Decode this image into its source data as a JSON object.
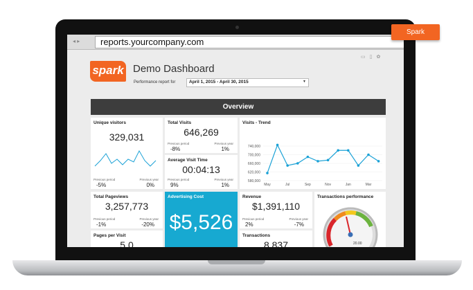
{
  "browser": {
    "url": "reports.yourcompany.com"
  },
  "badge": "Spark",
  "header": {
    "logo": "spark",
    "title": "Demo Dashboard",
    "report_label": "Performance report for",
    "date_range": "April 1, 2015 - April 30, 2015"
  },
  "section": "Overview",
  "widgets": [
    {
      "title": "Unique visitors",
      "value": "329,031",
      "period_label": "Previous period",
      "period_change": "-5%",
      "year_label": "Previous year",
      "year_change": "0%"
    },
    {
      "title": "Total Visits",
      "value": "646,269",
      "period_label": "Previous period",
      "period_change": "-8%",
      "year_label": "Previous year",
      "year_change": "1%"
    },
    {
      "title": "Average Visit Time",
      "value": "00:04:13",
      "period_label": "Previous period",
      "period_change": "9%",
      "year_label": "Previous year",
      "year_change": "1%"
    },
    {
      "title": "Total Pageviews",
      "value": "3,257,773",
      "period_label": "Previous period",
      "period_change": "-1%",
      "year_label": "Previous year",
      "year_change": "-20%"
    },
    {
      "title": "Pages per Visit",
      "value": "5.0"
    },
    {
      "title": "Advertising Cost",
      "value": "$5,526"
    },
    {
      "title": "Revenue",
      "value": "$1,391,110",
      "period_label": "Previous period",
      "period_change": "2%",
      "year_label": "Previous year",
      "year_change": "-7%"
    },
    {
      "title": "Transactions",
      "value": "8,837"
    }
  ],
  "gauge": {
    "title": "Transactions performance",
    "reading": "20.00"
  },
  "chart_data": {
    "type": "line",
    "title": "Visits - Trend",
    "categories": [
      "May",
      null,
      "Jul",
      null,
      "Sep",
      null,
      "Nov",
      null,
      "Jan",
      null,
      "Mar",
      null
    ],
    "series": [
      {
        "name": "Visits",
        "color": "#1aa1d6",
        "values": [
          615000,
          745000,
          650000,
          660000,
          690000,
          670000,
          675000,
          720000,
          720000,
          650000,
          700000,
          670000
        ]
      }
    ],
    "ylim": [
      570000,
      750000
    ],
    "yticks": [
      {
        "value": 580000,
        "label": "580,000"
      },
      {
        "value": 620000,
        "label": "620,000"
      },
      {
        "value": 660000,
        "label": "660,000"
      },
      {
        "value": 700000,
        "label": "700,000"
      },
      {
        "value": 740000,
        "label": "740,000"
      }
    ]
  }
}
